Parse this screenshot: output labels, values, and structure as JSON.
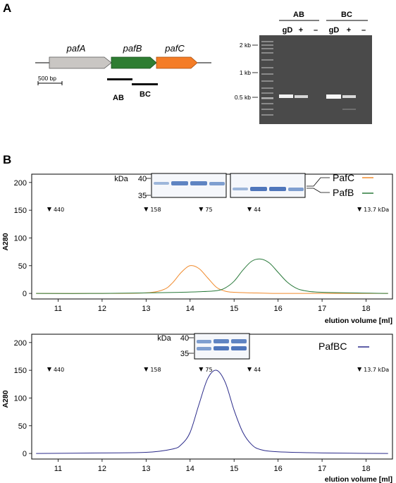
{
  "panel_labels": {
    "a": "A",
    "b": "B"
  },
  "operon": {
    "genes": [
      {
        "name": "pafA",
        "color": "#c9c6c3"
      },
      {
        "name": "pafB",
        "color": "#2e7d32"
      },
      {
        "name": "pafC",
        "color": "#f47c26"
      }
    ],
    "products": [
      "AB",
      "BC"
    ],
    "scale_label": "500 bp"
  },
  "gel": {
    "groups": [
      "AB",
      "BC"
    ],
    "lanes": [
      "gD",
      "+",
      "–",
      "gD",
      "+",
      "–"
    ],
    "ladder_labels": [
      "2 kb",
      "1 kb",
      "0.5 kb"
    ]
  },
  "sds": {
    "kda_label": "kDa",
    "marks": [
      "40",
      "35"
    ]
  },
  "markers": {
    "labels": [
      "440",
      "158",
      "75",
      "44",
      "13.7 kDa"
    ],
    "positions_ml": [
      10.8,
      13.0,
      14.25,
      15.35,
      17.85
    ]
  },
  "chart_data": [
    {
      "type": "line",
      "xlabel": "elution volume [ml]",
      "ylabel": "A280",
      "xlim": [
        10.4,
        18.6
      ],
      "ylim": [
        -10,
        215
      ],
      "x_ticks": [
        11,
        12,
        13,
        14,
        15,
        16,
        17,
        18
      ],
      "y_ticks": [
        0,
        50,
        100,
        150,
        200
      ],
      "series": [
        {
          "name": "PafC",
          "color": "#f08a2c",
          "x": [
            10.5,
            12.0,
            13.0,
            13.4,
            13.6,
            13.8,
            14.0,
            14.2,
            14.4,
            14.6,
            14.8,
            15.0,
            15.4,
            16.0,
            17.0,
            18.5
          ],
          "y": [
            0,
            0,
            1,
            7,
            19,
            38,
            50,
            45,
            28,
            11,
            4,
            2,
            1,
            0,
            0,
            0
          ]
        },
        {
          "name": "PafB",
          "color": "#2a7a3b",
          "x": [
            10.5,
            12.0,
            13.0,
            13.8,
            14.2,
            14.6,
            14.8,
            15.0,
            15.2,
            15.4,
            15.6,
            15.8,
            16.0,
            16.2,
            16.4,
            16.6,
            17.0,
            18.5
          ],
          "y": [
            0,
            0,
            1,
            2,
            3,
            5,
            10,
            22,
            42,
            58,
            62,
            55,
            38,
            21,
            10,
            5,
            2,
            0
          ]
        }
      ]
    },
    {
      "type": "line",
      "xlabel": "elution volume [ml]",
      "ylabel": "A280",
      "xlim": [
        10.4,
        18.6
      ],
      "ylim": [
        -10,
        215
      ],
      "x_ticks": [
        11,
        12,
        13,
        14,
        15,
        16,
        17,
        18
      ],
      "y_ticks": [
        0,
        50,
        100,
        150,
        200
      ],
      "series": [
        {
          "name": "PafBC",
          "color": "#2b2b8a",
          "x": [
            10.5,
            12.0,
            13.0,
            13.6,
            13.8,
            14.0,
            14.2,
            14.4,
            14.6,
            14.8,
            15.0,
            15.2,
            15.4,
            15.6,
            16.0,
            17.0,
            18.5
          ],
          "y": [
            0,
            1,
            2,
            8,
            16,
            38,
            88,
            135,
            150,
            128,
            78,
            38,
            16,
            7,
            3,
            1,
            0
          ]
        }
      ]
    }
  ]
}
